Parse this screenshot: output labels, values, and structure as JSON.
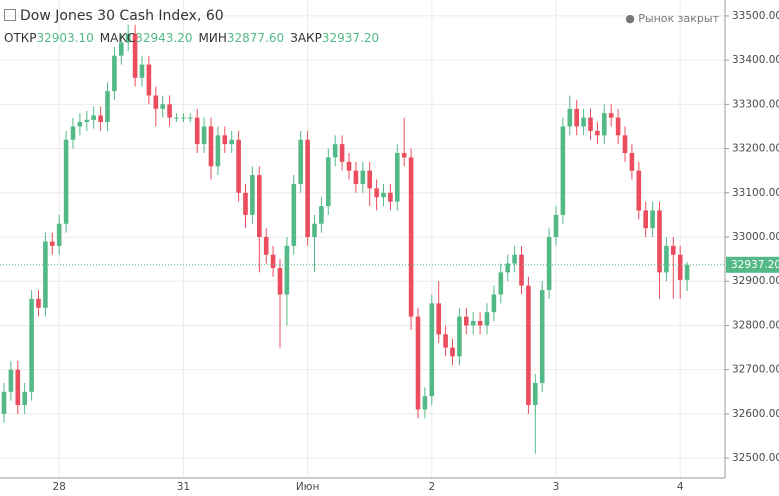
{
  "header": {
    "title": "Dow Jones 30 Cash Index",
    "interval": ", 60",
    "ohlc": [
      {
        "label": "ОТКР",
        "value": "32903.10"
      },
      {
        "label": "МАКС",
        "value": "32943.20"
      },
      {
        "label": "МИН",
        "value": "32877.60"
      },
      {
        "label": "ЗАКР",
        "value": "32937.20"
      }
    ],
    "status": "Рынок закрыт"
  },
  "chart_data": {
    "type": "candlestick",
    "up_color": "#53b987",
    "down_color": "#eb4d5c",
    "grid": true,
    "ylim": [
      32455,
      33536
    ],
    "yticks": [
      {
        "value": 32500,
        "label": "32500.00"
      },
      {
        "value": 32600,
        "label": "32600.00"
      },
      {
        "value": 32700,
        "label": "32700.00"
      },
      {
        "value": 32800,
        "label": "32800.00"
      },
      {
        "value": 32900,
        "label": "32900.00"
      },
      {
        "value": 33000,
        "label": "33000.00"
      },
      {
        "value": 33100,
        "label": "33100.00"
      },
      {
        "value": 33200,
        "label": "33200.00"
      },
      {
        "value": 33300,
        "label": "33300.00"
      },
      {
        "value": 33400,
        "label": "33400.00"
      },
      {
        "value": 33500,
        "label": "33500.00"
      }
    ],
    "last_price": {
      "value": 32937.2,
      "label": "32937.20"
    },
    "categories": [
      null,
      null,
      null,
      null,
      null,
      null,
      null,
      null,
      "28",
      null,
      null,
      null,
      null,
      null,
      null,
      null,
      null,
      null,
      null,
      null,
      null,
      null,
      null,
      null,
      null,
      null,
      "31",
      null,
      null,
      null,
      null,
      null,
      null,
      null,
      null,
      null,
      null,
      null,
      null,
      null,
      null,
      null,
      null,
      null,
      "Июн",
      null,
      null,
      null,
      null,
      null,
      null,
      null,
      null,
      null,
      null,
      null,
      null,
      null,
      null,
      null,
      null,
      null,
      "2",
      null,
      null,
      null,
      null,
      null,
      null,
      null,
      null,
      null,
      null,
      null,
      null,
      null,
      null,
      null,
      null,
      null,
      "3",
      null,
      null,
      null,
      null,
      null,
      null,
      null,
      null,
      null,
      null,
      null,
      null,
      null,
      null,
      null,
      null,
      null,
      "4",
      null
    ],
    "open": [
      32600,
      32650,
      32700,
      32620,
      32650,
      32860,
      32840,
      32990,
      32980,
      33030,
      33220,
      33250,
      33260,
      33265,
      33275,
      33260,
      33330,
      33410,
      33440,
      33460,
      33360,
      33390,
      33320,
      33290,
      33300,
      33270,
      33270,
      33270,
      33270,
      33210,
      33250,
      33160,
      33230,
      33210,
      33220,
      33100,
      33050,
      33140,
      33000,
      32960,
      32930,
      32870,
      32980,
      33120,
      33220,
      33000,
      33030,
      33070,
      33180,
      33210,
      33170,
      33150,
      33120,
      33150,
      33110,
      33090,
      33100,
      33080,
      33190,
      33180,
      32820,
      32610,
      32640,
      32850,
      32780,
      32750,
      32730,
      32820,
      32800,
      32810,
      32800,
      32830,
      32870,
      32920,
      32940,
      32960,
      32890,
      32620,
      32670,
      32880,
      33000,
      33050,
      33250,
      33290,
      33250,
      33270,
      33240,
      33230,
      33280,
      33270,
      33230,
      33190,
      33150,
      33060,
      33020,
      33060,
      32920,
      32980,
      32960,
      32903.1
    ],
    "high": [
      32670,
      32720,
      32720,
      32670,
      32880,
      32880,
      33010,
      33010,
      33050,
      33240,
      33270,
      33280,
      33285,
      33295,
      33295,
      33350,
      33430,
      33460,
      33480,
      33480,
      33410,
      33410,
      33340,
      33320,
      33320,
      33280,
      33280,
      33280,
      33290,
      33270,
      33270,
      33250,
      33250,
      33240,
      33240,
      33120,
      33160,
      33160,
      33020,
      32980,
      32950,
      33000,
      33140,
      33240,
      33240,
      33050,
      33090,
      33200,
      33230,
      33230,
      33190,
      33170,
      33170,
      33170,
      33130,
      33120,
      33120,
      33210,
      33270,
      33200,
      32840,
      32660,
      32870,
      32900,
      32800,
      32770,
      32840,
      32840,
      32830,
      32830,
      32850,
      32890,
      32940,
      32960,
      32980,
      32980,
      32910,
      32690,
      32900,
      33020,
      33070,
      33270,
      33320,
      33310,
      33290,
      33290,
      33260,
      33300,
      33300,
      33290,
      33250,
      33210,
      33170,
      33080,
      33080,
      33080,
      33000,
      33000,
      32980,
      32943.2
    ],
    "low": [
      32580,
      32630,
      32600,
      32600,
      32630,
      32820,
      32820,
      32960,
      32960,
      33010,
      33200,
      33230,
      33240,
      33245,
      33240,
      33240,
      33310,
      33390,
      33420,
      33340,
      33340,
      33300,
      33250,
      33270,
      33250,
      33260,
      33260,
      33260,
      33190,
      33190,
      33130,
      33140,
      33190,
      33190,
      33080,
      33020,
      33030,
      32920,
      32940,
      32910,
      32750,
      32800,
      32960,
      33100,
      32980,
      32920,
      33010,
      33050,
      33160,
      33150,
      33130,
      33100,
      33100,
      33070,
      33060,
      33070,
      33060,
      33060,
      33160,
      32790,
      32590,
      32590,
      32620,
      32760,
      32730,
      32710,
      32710,
      32780,
      32780,
      32780,
      32780,
      32810,
      32850,
      32900,
      32920,
      32870,
      32600,
      32510,
      32650,
      32860,
      32980,
      33030,
      33230,
      33230,
      33230,
      33220,
      33210,
      33210,
      33250,
      33210,
      33170,
      33130,
      33040,
      33000,
      33000,
      32860,
      32900,
      32860,
      32860,
      32877.6
    ],
    "close": [
      32650,
      32700,
      32620,
      32650,
      32860,
      32840,
      32990,
      32980,
      33030,
      33220,
      33250,
      33260,
      33265,
      33275,
      33260,
      33330,
      33410,
      33440,
      33460,
      33360,
      33390,
      33320,
      33290,
      33300,
      33270,
      33270,
      33270,
      33270,
      33210,
      33250,
      33160,
      33230,
      33210,
      33220,
      33100,
      33050,
      33140,
      33000,
      32960,
      32930,
      32870,
      32980,
      33120,
      33220,
      33000,
      33030,
      33070,
      33180,
      33210,
      33170,
      33150,
      33120,
      33150,
      33110,
      33090,
      33100,
      33080,
      33190,
      33180,
      32820,
      32610,
      32640,
      32850,
      32780,
      32750,
      32730,
      32820,
      32800,
      32810,
      32800,
      32830,
      32870,
      32920,
      32940,
      32960,
      32890,
      32620,
      32670,
      32880,
      33000,
      33050,
      33250,
      33290,
      33250,
      33270,
      33240,
      33230,
      33280,
      33270,
      33230,
      33190,
      33150,
      33060,
      33020,
      33060,
      32920,
      32980,
      32960,
      32903.1,
      32937.2
    ]
  }
}
